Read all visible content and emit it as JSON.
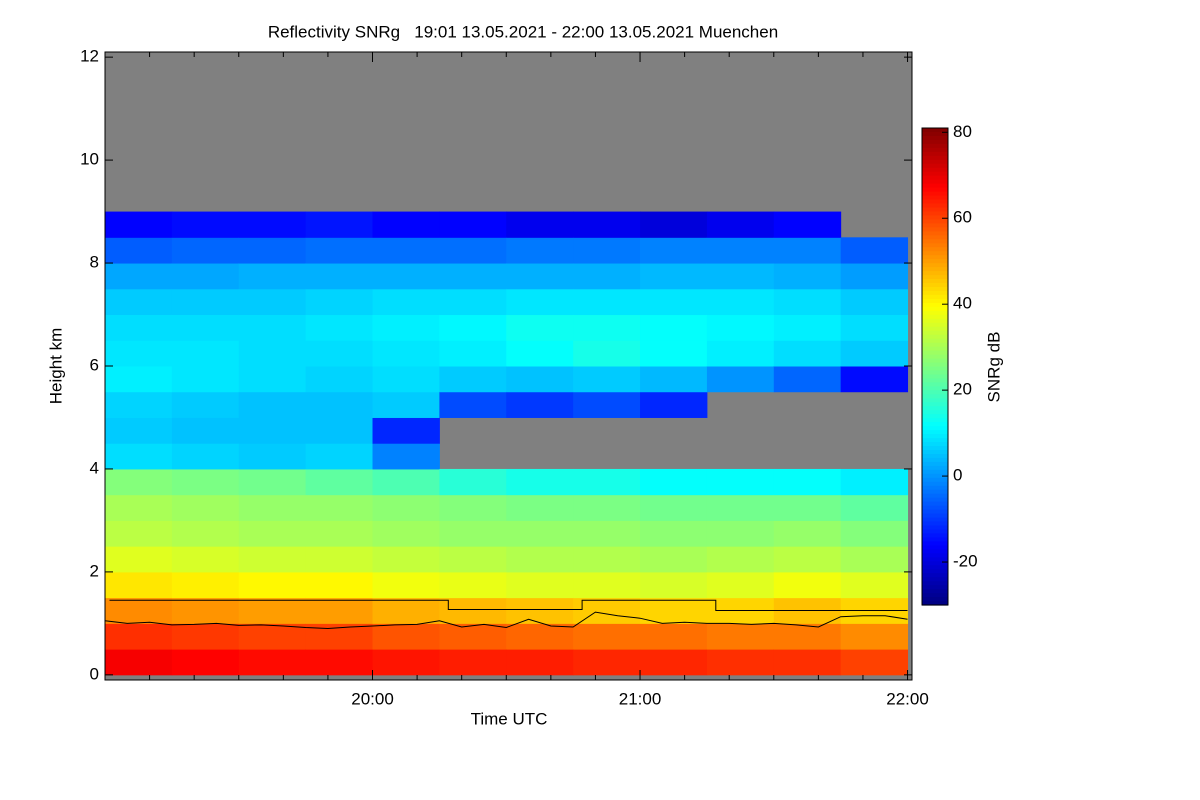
{
  "chart_data": {
    "type": "heatmap",
    "title": "Reflectivity SNRg   19:01 13.05.2021 - 22:00 13.05.2021 Muenchen",
    "xlabel": "Time UTC",
    "ylabel": "Height km",
    "colorbar_label": "SNRg dB",
    "colormap": "jet",
    "missing_color": "#808080",
    "xlim": [
      1140,
      1321
    ],
    "ylim": [
      -0.1,
      12.1
    ],
    "clim": [
      -30,
      81
    ],
    "xticks": [
      {
        "value": 1200,
        "label": "20:00"
      },
      {
        "value": 1260,
        "label": "21:00"
      },
      {
        "value": 1320,
        "label": "22:00"
      }
    ],
    "xminorticks": [
      1150,
      1160,
      1170,
      1180,
      1190,
      1210,
      1220,
      1230,
      1240,
      1250,
      1270,
      1280,
      1290,
      1300,
      1310
    ],
    "yticks": [
      0,
      2,
      4,
      6,
      8,
      10,
      12
    ],
    "cticks": [
      -20,
      0,
      20,
      40,
      60,
      80
    ],
    "x": [
      1147.5,
      1162.5,
      1177.5,
      1192.5,
      1207.5,
      1222.5,
      1237.5,
      1252.5,
      1267.5,
      1282.5,
      1297.5,
      1312.5
    ],
    "y": [
      0.25,
      0.75,
      1.25,
      1.75,
      2.25,
      2.75,
      3.25,
      3.75,
      4.25,
      4.75,
      5.25,
      5.75,
      6.25,
      6.75,
      7.25,
      7.75,
      8.25,
      8.75,
      9.25,
      9.75,
      10.25,
      10.75,
      11.25,
      11.75
    ],
    "z": [
      [
        68,
        62,
        52,
        42,
        36,
        32,
        30,
        26,
        8,
        6,
        7,
        10,
        9,
        8,
        6,
        2,
        -6,
        -16,
        null,
        null,
        null,
        null,
        null,
        null
      ],
      [
        67,
        61,
        51,
        41,
        35,
        31,
        29,
        25,
        7,
        5,
        6,
        9,
        9,
        8,
        6,
        2,
        -5,
        -15,
        null,
        null,
        null,
        null,
        null,
        null
      ],
      [
        66,
        60,
        50,
        40,
        34,
        30,
        28,
        24,
        6,
        5,
        5,
        8,
        8,
        8,
        6,
        3,
        -5,
        -15,
        null,
        null,
        null,
        null,
        null,
        null
      ],
      [
        66,
        60,
        50,
        40,
        34,
        30,
        28,
        22,
        7,
        5,
        5,
        7,
        8,
        9,
        7,
        3,
        -4,
        -14,
        null,
        null,
        null,
        null,
        null,
        null
      ],
      [
        65,
        58,
        48,
        38,
        33,
        29,
        27,
        20,
        -2,
        -12,
        6,
        8,
        9,
        10,
        8,
        3,
        -4,
        -16,
        null,
        null,
        null,
        null,
        null,
        null
      ],
      [
        64,
        57,
        47,
        37,
        32,
        28,
        26,
        16,
        null,
        null,
        -8,
        6,
        10,
        11,
        8,
        3,
        -4,
        -16,
        null,
        null,
        null,
        null,
        null,
        null
      ],
      [
        64,
        56,
        46,
        36,
        31,
        28,
        25,
        14,
        null,
        null,
        -10,
        5,
        12,
        13,
        9,
        3,
        -3,
        -18,
        null,
        null,
        null,
        null,
        null,
        null
      ],
      [
        63,
        55,
        45,
        36,
        31,
        28,
        25,
        14,
        null,
        null,
        -8,
        6,
        14,
        13,
        9,
        3,
        -3,
        -18,
        null,
        null,
        null,
        null,
        null,
        null
      ],
      [
        63,
        55,
        44,
        35,
        30,
        27,
        24,
        12,
        null,
        null,
        -12,
        4,
        12,
        12,
        9,
        4,
        -2,
        -20,
        null,
        null,
        null,
        null,
        null,
        null
      ],
      [
        62,
        54,
        44,
        36,
        31,
        27,
        24,
        12,
        null,
        null,
        null,
        0,
        10,
        11,
        9,
        4,
        -2,
        -18,
        null,
        null,
        null,
        null,
        null,
        null
      ],
      [
        62,
        54,
        46,
        38,
        32,
        28,
        24,
        12,
        null,
        null,
        null,
        -5,
        8,
        10,
        8,
        3,
        -2,
        -16,
        null,
        null,
        null,
        null,
        null,
        null
      ],
      [
        60,
        52,
        44,
        36,
        30,
        26,
        22,
        10,
        null,
        null,
        null,
        -15,
        6,
        8,
        6,
        1,
        -6,
        null,
        null,
        null,
        null,
        null,
        null,
        null
      ]
    ],
    "lines": [
      {
        "color": "#000000",
        "x": [
          1141,
          1217,
          1217,
          1247,
          1247,
          1277,
          1277,
          1320
        ],
        "values": [
          1.45,
          1.45,
          1.27,
          1.27,
          1.45,
          1.45,
          1.25,
          1.25
        ]
      },
      {
        "color": "#000000",
        "x": [
          1140,
          1145,
          1150,
          1155,
          1160,
          1165,
          1170,
          1175,
          1180,
          1185,
          1190,
          1195,
          1200,
          1205,
          1210,
          1215,
          1220,
          1225,
          1230,
          1235,
          1240,
          1245,
          1250,
          1255,
          1260,
          1265,
          1270,
          1275,
          1280,
          1285,
          1290,
          1295,
          1300,
          1305,
          1310,
          1315,
          1320
        ],
        "values": [
          1.05,
          1.0,
          1.02,
          0.97,
          0.98,
          1.0,
          0.96,
          0.97,
          0.95,
          0.92,
          0.9,
          0.93,
          0.95,
          0.97,
          0.98,
          1.05,
          0.93,
          0.98,
          0.92,
          1.08,
          0.95,
          0.93,
          1.22,
          1.15,
          1.1,
          1.0,
          1.02,
          1.0,
          1.0,
          0.98,
          1.0,
          0.97,
          0.93,
          1.13,
          1.15,
          1.15,
          1.08
        ]
      }
    ]
  }
}
